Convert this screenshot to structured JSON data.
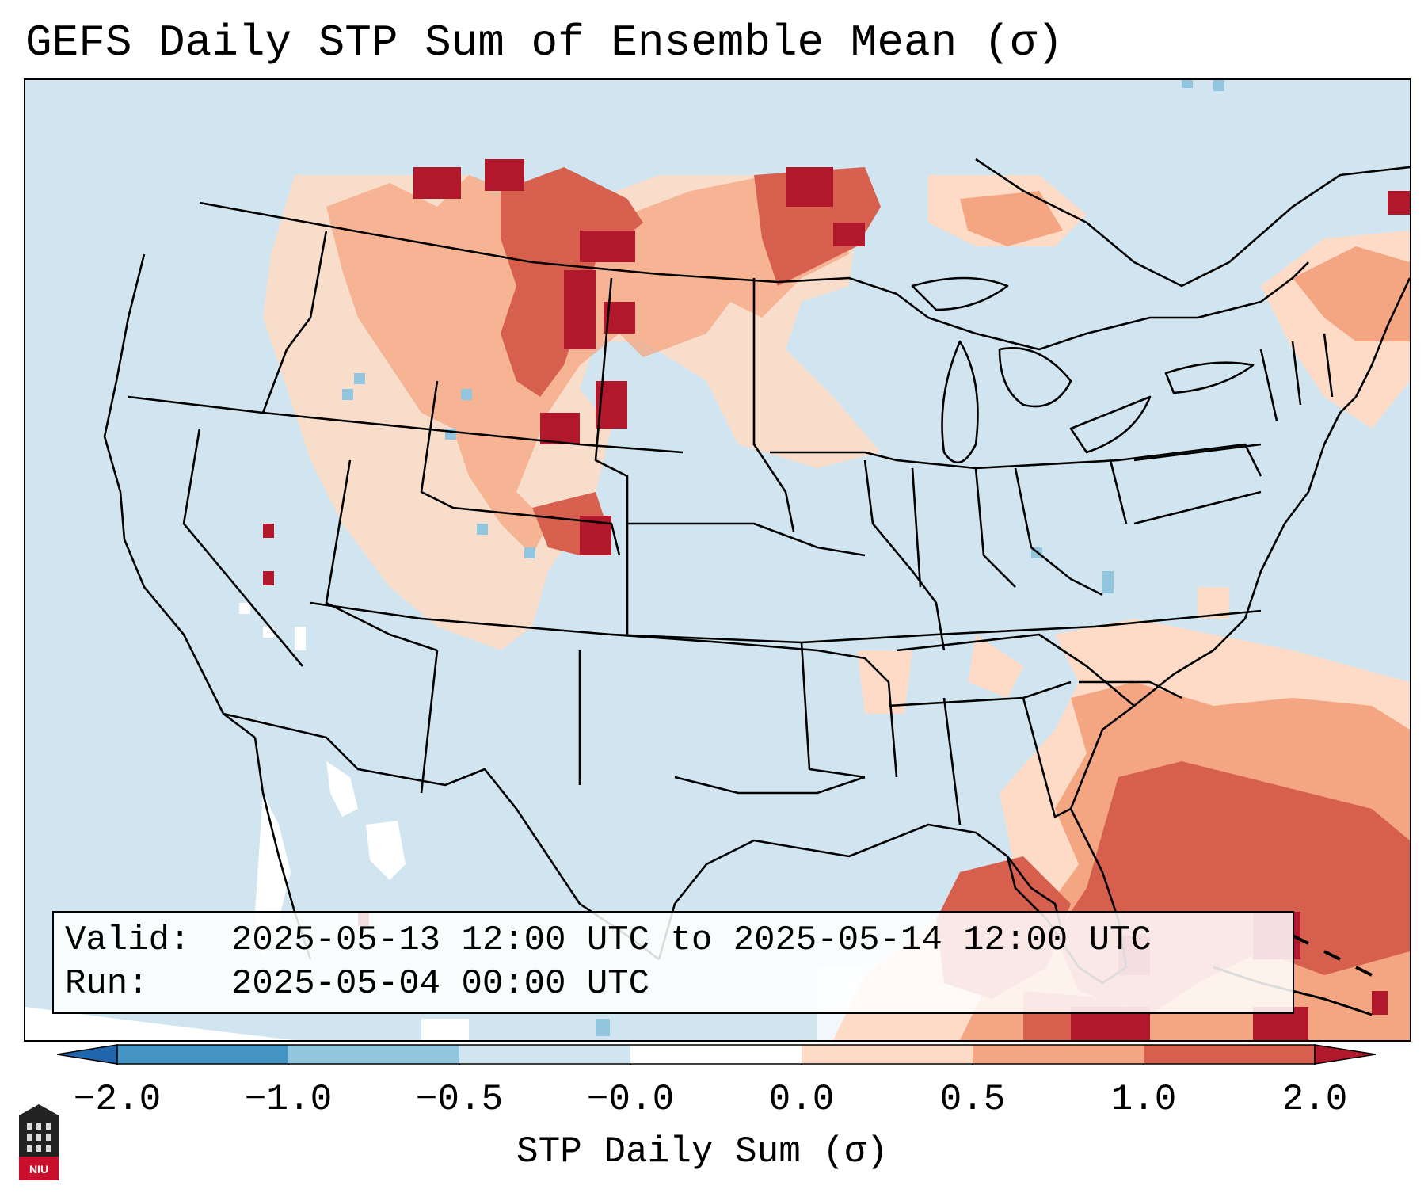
{
  "title": "GEFS Daily STP Sum of Ensemble Mean (σ)",
  "info": {
    "valid_key": "Valid:",
    "valid_value": "2025-05-13 12:00 UTC to 2025-05-14 12:00 UTC",
    "run_key": "Run:",
    "run_value": "2025-05-04 00:00 UTC"
  },
  "colorbar": {
    "label": "STP Daily Sum (σ)",
    "ticks": [
      "−2.0",
      "−1.0",
      "−0.5",
      "−0.0",
      "0.0",
      "0.5",
      "1.0",
      "2.0"
    ],
    "bin_colors": [
      "#2166ac",
      "#4393c3",
      "#92c5de",
      "#d1e5f0",
      "#ffffff",
      "#fddbc7",
      "#f4a582",
      "#d6604d",
      "#b2182b"
    ]
  },
  "map": {
    "background_color": "#d1e5f0",
    "region": "Contiguous United States, southern Canada, northern Mexico, Gulf of Mexico and Caribbean",
    "anomaly_areas": [
      {
        "area": "Northern Plains and Montana",
        "level": "up to 2.0"
      },
      {
        "area": "Southern Manitoba and northwestern Ontario",
        "level": "up to 2.0"
      },
      {
        "area": "Florida and Bahamas",
        "level": "1.0 to 2.0"
      },
      {
        "area": "Southeast US coast and western Atlantic",
        "level": "0.0 to 1.0"
      },
      {
        "area": "Gulf of Mexico and Cuba",
        "level": "0.0 to 2.0"
      }
    ]
  },
  "logo": {
    "text": "NIU"
  }
}
